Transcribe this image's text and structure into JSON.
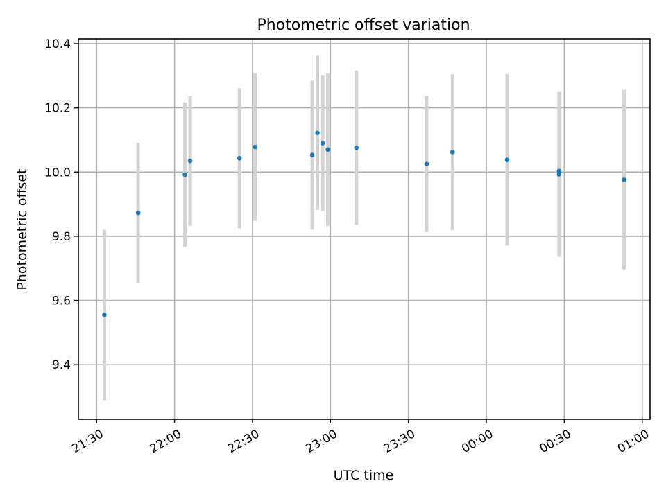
{
  "chart_data": {
    "type": "scatter",
    "title": "Photometric offset variation",
    "xlabel": "UTC time",
    "ylabel": "Photometric offset",
    "x_ticks": [
      "21:30",
      "22:00",
      "22:30",
      "23:00",
      "23:30",
      "00:00",
      "00:30",
      "01:00"
    ],
    "y_ticks": [
      "9.4",
      "9.6",
      "9.8",
      "10.0",
      "10.2",
      "10.4"
    ],
    "xlim": [
      "21:23",
      "01:03"
    ],
    "ylim": [
      9.23,
      10.415
    ],
    "grid": true,
    "colors": {
      "marker": "#1f77b4",
      "errorbar": "#d3d3d3",
      "grid": "#b0b0b0"
    },
    "points": [
      {
        "x": "21:33",
        "y": 9.555,
        "yerr": 0.265
      },
      {
        "x": "21:46",
        "y": 9.873,
        "yerr": 0.218
      },
      {
        "x": "22:04",
        "y": 9.992,
        "yerr": 0.225
      },
      {
        "x": "22:06",
        "y": 10.035,
        "yerr": 0.203
      },
      {
        "x": "22:25",
        "y": 10.043,
        "yerr": 0.218
      },
      {
        "x": "22:31",
        "y": 10.078,
        "yerr": 0.23
      },
      {
        "x": "22:53",
        "y": 10.053,
        "yerr": 0.232
      },
      {
        "x": "22:55",
        "y": 10.122,
        "yerr": 0.24
      },
      {
        "x": "22:57",
        "y": 10.09,
        "yerr": 0.212
      },
      {
        "x": "22:59",
        "y": 10.07,
        "yerr": 0.237
      },
      {
        "x": "23:10",
        "y": 10.076,
        "yerr": 0.24
      },
      {
        "x": "23:37",
        "y": 10.025,
        "yerr": 0.212
      },
      {
        "x": "23:47",
        "y": 10.062,
        "yerr": 0.243
      },
      {
        "x": "00:08",
        "y": 10.038,
        "yerr": 0.267
      },
      {
        "x": "00:28",
        "y": 10.003,
        "yerr": 0.24
      },
      {
        "x": "00:28",
        "y": 9.993,
        "yerr": 0.257
      },
      {
        "x": "00:53",
        "y": 9.976,
        "yerr": 0.28
      }
    ]
  }
}
